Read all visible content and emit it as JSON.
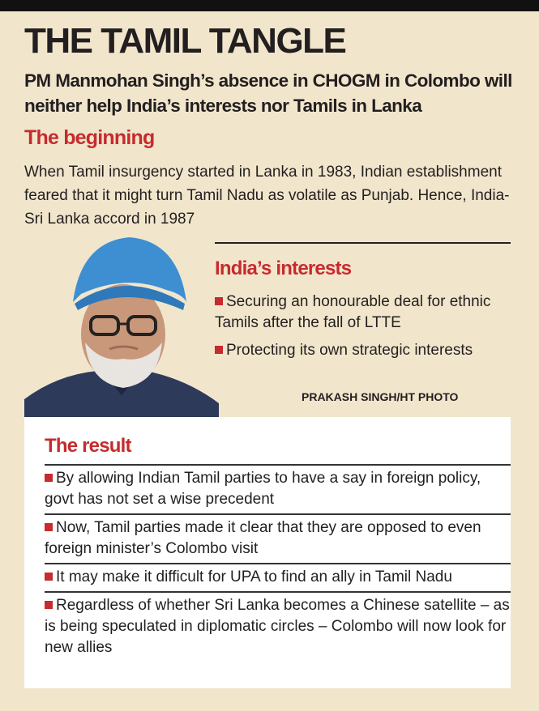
{
  "header": {
    "title": "THE TAMIL TANGLE",
    "subtitle": "PM Manmohan Singh’s absence in CHOGM in Colombo will neither help India’s interests nor Tamils in Lanka"
  },
  "beginning": {
    "heading": "The beginning",
    "text": "When Tamil insurgency started in Lanka in 1983, Indian establishment feared that it might turn Tamil Nadu as volatile as Punjab. Hence, India-Sri Lanka accord in 1987"
  },
  "interests": {
    "heading": "India’s interests",
    "items": [
      "Securing an honourable deal for ethnic Tamils after the fall of LTTE",
      "Protecting its own strategic interests"
    ]
  },
  "photo_credit": "PRAKASH SINGH/HT PHOTO",
  "result": {
    "heading": "The result",
    "items": [
      "By allowing Indian Tamil parties to have a say in foreign policy, govt has not set a wise precedent",
      "Now, Tamil parties made it clear that they are opposed to even foreign minister’s Colombo visit",
      "It may make it difficult for UPA to find an ally in Tamil Nadu",
      "Regardless of whether Sri Lanka becomes a Chinese satellite – as is being speculated in diplomatic circles – Colombo will now look for new allies"
    ]
  }
}
